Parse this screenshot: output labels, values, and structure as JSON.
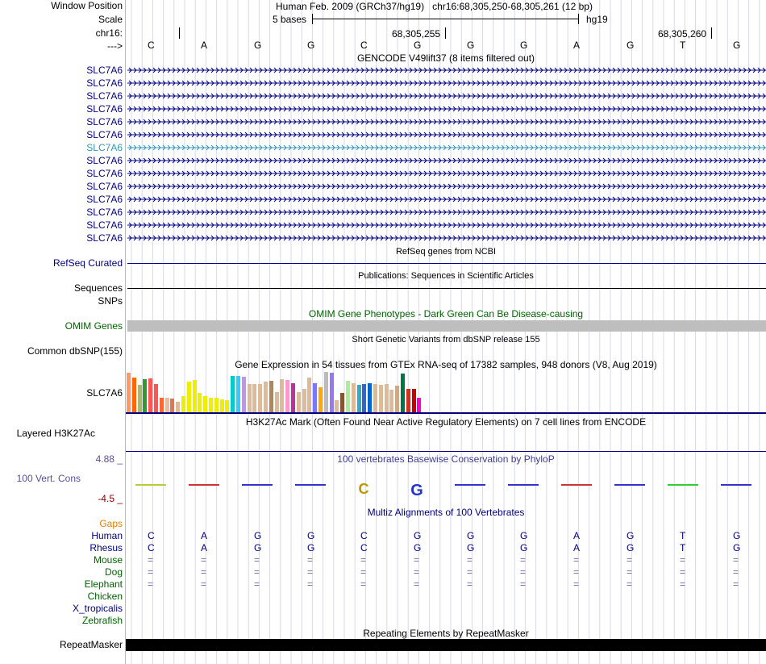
{
  "header": {
    "window_position_label": "Window Position",
    "scale_label": "Scale",
    "chrom_label": "chr16:",
    "strand_label": "--->",
    "assembly_text": "Human Feb. 2009 (GRCh37/hg19)",
    "position_text": "chr16:68,305,250-68,305,261 (12 bp)",
    "scale_text": "5 bases",
    "scale_assembly": "hg19",
    "coord1": "68,305,255",
    "coord2": "68,305,260"
  },
  "sequence": [
    "C",
    "A",
    "G",
    "G",
    "C",
    "G",
    "G",
    "G",
    "A",
    "G",
    "T",
    "G"
  ],
  "gencode": {
    "title": "GENCODE V49lift37 (8 items filtered out)",
    "genes": [
      "SLC7A6",
      "SLC7A6",
      "SLC7A6",
      "SLC7A6",
      "SLC7A6",
      "SLC7A6",
      "SLC7A6",
      "SLC7A6",
      "SLC7A6",
      "SLC7A6",
      "SLC7A6",
      "SLC7A6",
      "SLC7A6",
      "SLC7A6"
    ],
    "highlighted_index": 6
  },
  "refseq": {
    "title": "RefSeq genes from NCBI",
    "label": "RefSeq Curated"
  },
  "publications": {
    "title": "Publications: Sequences in Scientific Articles",
    "label": "Sequences"
  },
  "snps": {
    "label": "SNPs"
  },
  "omim": {
    "title": "OMIM Gene Phenotypes - Dark Green Can Be Disease-causing",
    "label": "OMIM Genes"
  },
  "dbsnp": {
    "title": "Short Genetic Variants from dbSNP release 155",
    "label": "Common dbSNP(155)"
  },
  "gtex": {
    "title": "Gene Expression in 54 tissues from GTEx RNA-seq of 17382 samples, 948 donors (V8, Aug 2019)",
    "label": "SLC7A6",
    "levels": [
      0.98,
      0.85,
      0.68,
      0.82,
      0.83,
      0.7,
      0.36,
      0.36,
      0.33,
      0.25,
      0.4,
      0.75,
      0.8,
      0.48,
      0.4,
      0.35,
      0.36,
      0.32,
      0.3,
      0.9,
      0.89,
      0.88,
      0.7,
      0.7,
      0.7,
      0.75,
      0.78,
      0.5,
      0.82,
      0.8,
      0.72,
      0.5,
      0.58,
      0.85,
      0.72,
      0.62,
      1.0,
      0.98,
      0.3,
      0.48,
      0.78,
      0.72,
      0.68,
      0.7,
      0.72,
      0.7,
      0.68,
      0.7,
      0.55,
      0.65,
      0.95,
      0.58,
      0.58,
      0.35
    ],
    "colors": [
      "#ff9966",
      "#ff6600",
      "#aabb66",
      "#339933",
      "#ff5555",
      "#ff5555",
      "#ff6633",
      "#eebb99",
      "#dd7755",
      "#ddbb99",
      "#eeee00",
      "#eeee00",
      "#eeee00",
      "#eeee00",
      "#eeee00",
      "#eeee00",
      "#eeee00",
      "#eeee00",
      "#eeee00",
      "#00cccc",
      "#33ccff",
      "#bb99dd",
      "#ddbb99",
      "#ddbb99",
      "#ddbb99",
      "#ddbb99",
      "#aa8866",
      "#ddbb99",
      "#ddbb99",
      "#ff99cc",
      "#bb3399",
      "#ddbb99",
      "#ddbb99",
      "#ddbb99",
      "#7777ff",
      "#ffaa00",
      "#bbbbbb",
      "#9977ee",
      "#ddbb99",
      "#885533",
      "#aaee99",
      "#ddbb99",
      "#33aacc",
      "#3366cc",
      "#0066cc",
      "#ddbb99",
      "#ddbb99",
      "#ddbb99",
      "#ddbb99",
      "#ccaa88",
      "#007744",
      "#cc3322",
      "#cc0000",
      "#ff00cc"
    ]
  },
  "h3k27ac": {
    "title": "H3K27Ac Mark (Often Found Near Active Regulatory Elements) on 7 cell lines from ENCODE",
    "label": "Layered H3K27Ac"
  },
  "phylop": {
    "title": "100 vertebrates Basewise Conservation by PhyloP",
    "label": "100 Vert. Cons",
    "max": "4.88 _",
    "min": "-4.5 _"
  },
  "multiz": {
    "title": "Multiz Alignments of 100 Vertebrates",
    "species": [
      {
        "name": "Gaps",
        "type": "gaps"
      },
      {
        "name": "Human",
        "type": "seq"
      },
      {
        "name": "Rhesus",
        "type": "seq"
      },
      {
        "name": "Mouse",
        "type": "eq"
      },
      {
        "name": "Dog",
        "type": "eq"
      },
      {
        "name": "Elephant",
        "type": "eq"
      },
      {
        "name": "Chicken",
        "type": "none"
      },
      {
        "name": "X_tropicalis",
        "type": "none"
      },
      {
        "name": "Zebrafish",
        "type": "none"
      }
    ],
    "equals_glyph": "="
  },
  "repeatmasker": {
    "title": "Repeating Elements by RepeatMasker",
    "label": "RepeatMasker"
  },
  "colors": {
    "navy": "#000080",
    "omim_bar": "#bebebe",
    "grid": "#d9d9e9"
  }
}
